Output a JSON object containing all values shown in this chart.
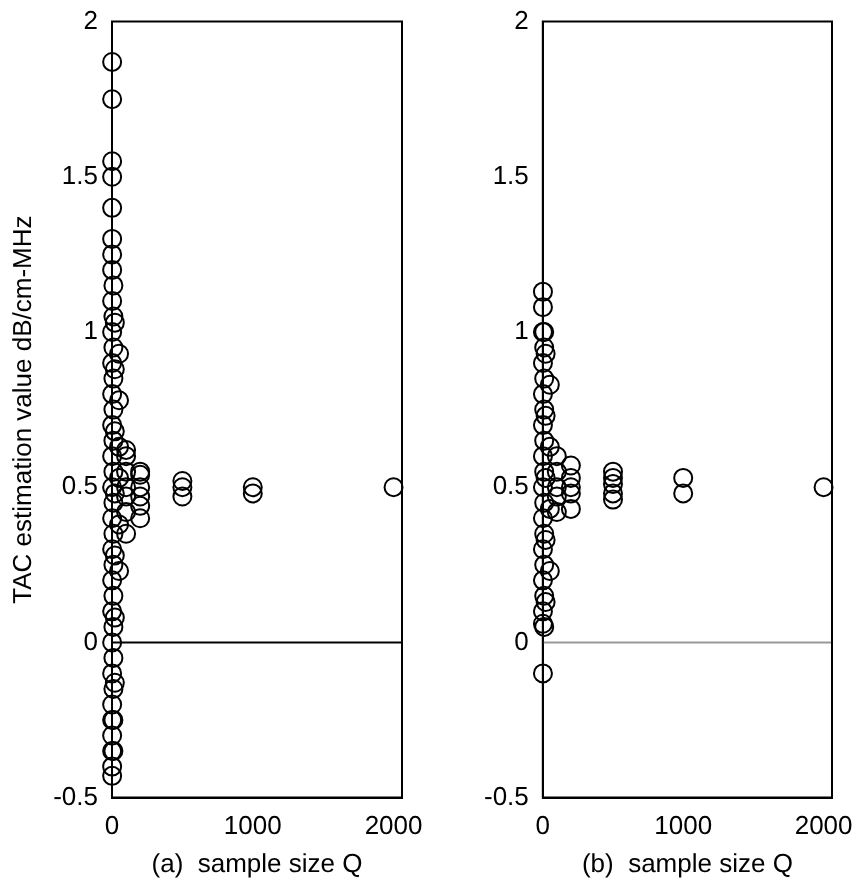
{
  "chart_data": [
    {
      "type": "scatter",
      "xlabel": "(a)  sample size Q",
      "ylabel": "TAC estimation value dB/cm-MHz",
      "xlim": [
        0,
        2060
      ],
      "xticks": [
        0,
        1000,
        2000
      ],
      "ylim": [
        -0.5,
        2
      ],
      "yticks": [
        -0.5,
        0,
        0.5,
        1,
        1.5,
        2
      ],
      "grid": false,
      "legend": false,
      "marker": "circle",
      "ref_lines": [
        {
          "axis": "y",
          "value": 0,
          "color": "#000000"
        }
      ],
      "series": [
        {
          "color": "#000000",
          "x": [
            1,
            1,
            1,
            1,
            1,
            1,
            1,
            1,
            1,
            1,
            1,
            1,
            1,
            1,
            1,
            1,
            1,
            1,
            1,
            1,
            1,
            1,
            1,
            1,
            1,
            1,
            1,
            10,
            10,
            10,
            10,
            10,
            10,
            10,
            10,
            10,
            10,
            10,
            10,
            10,
            10,
            10,
            10,
            20,
            20,
            20,
            20,
            20,
            20,
            20,
            50,
            50,
            50,
            50,
            50,
            50,
            100,
            100,
            100,
            100,
            100,
            100,
            100,
            200,
            200,
            200,
            200,
            200,
            200,
            500,
            500,
            500,
            1000,
            1000,
            2000
          ],
          "values": [
            -0.43,
            -0.4,
            -0.35,
            -0.3,
            -0.25,
            -0.2,
            -0.1,
            0,
            0.1,
            0.2,
            0.3,
            0.4,
            0.5,
            0.6,
            0.7,
            0.8,
            0.9,
            1,
            1.1,
            1.2,
            1.25,
            1.3,
            1.4,
            1.5,
            1.55,
            1.75,
            1.87,
            -0.35,
            -0.25,
            -0.15,
            -0.05,
            0.05,
            0.15,
            0.25,
            0.35,
            0.45,
            0.55,
            0.65,
            0.75,
            0.85,
            0.95,
            1.05,
            1.15,
            -0.13,
            0.08,
            0.28,
            0.48,
            0.68,
            0.88,
            1.03,
            0.23,
            0.38,
            0.53,
            0.63,
            0.78,
            0.93,
            0.35,
            0.42,
            0.47,
            0.5,
            0.55,
            0.6,
            0.62,
            0.4,
            0.44,
            0.47,
            0.5,
            0.54,
            0.55,
            0.47,
            0.5,
            0.52,
            0.48,
            0.5,
            0.5
          ]
        }
      ]
    },
    {
      "type": "scatter",
      "xlabel": "(b)  sample size Q",
      "xlim": [
        0,
        2060
      ],
      "xticks": [
        0,
        1000,
        2000
      ],
      "ylim": [
        -0.5,
        2
      ],
      "yticks": [
        -0.5,
        0,
        0.5,
        1,
        1.5,
        2
      ],
      "grid": false,
      "legend": false,
      "marker": "circle",
      "ref_lines": [
        {
          "axis": "y",
          "value": 0,
          "color": "#999999"
        }
      ],
      "series": [
        {
          "color": "#000000",
          "x": [
            1,
            1,
            1,
            1,
            1,
            1,
            1,
            1,
            1,
            1,
            1,
            1,
            1,
            1,
            10,
            10,
            10,
            10,
            10,
            10,
            10,
            10,
            10,
            10,
            10,
            20,
            20,
            20,
            20,
            20,
            50,
            50,
            50,
            50,
            100,
            100,
            100,
            100,
            100,
            200,
            200,
            200,
            200,
            200,
            500,
            500,
            500,
            500,
            500,
            1000,
            1000,
            2000
          ],
          "values": [
            -0.1,
            0.06,
            0.1,
            0.2,
            0.3,
            0.4,
            0.5,
            0.6,
            0.7,
            0.8,
            0.9,
            1,
            1.08,
            1.13,
            0.05,
            0.15,
            0.25,
            0.35,
            0.45,
            0.55,
            0.65,
            0.75,
            0.85,
            0.95,
            1,
            0.13,
            0.33,
            0.53,
            0.73,
            0.93,
            0.23,
            0.43,
            0.63,
            0.83,
            0.42,
            0.47,
            0.5,
            0.55,
            0.6,
            0.43,
            0.48,
            0.5,
            0.53,
            0.57,
            0.46,
            0.48,
            0.51,
            0.53,
            0.55,
            0.48,
            0.53,
            0.5
          ]
        }
      ]
    }
  ]
}
